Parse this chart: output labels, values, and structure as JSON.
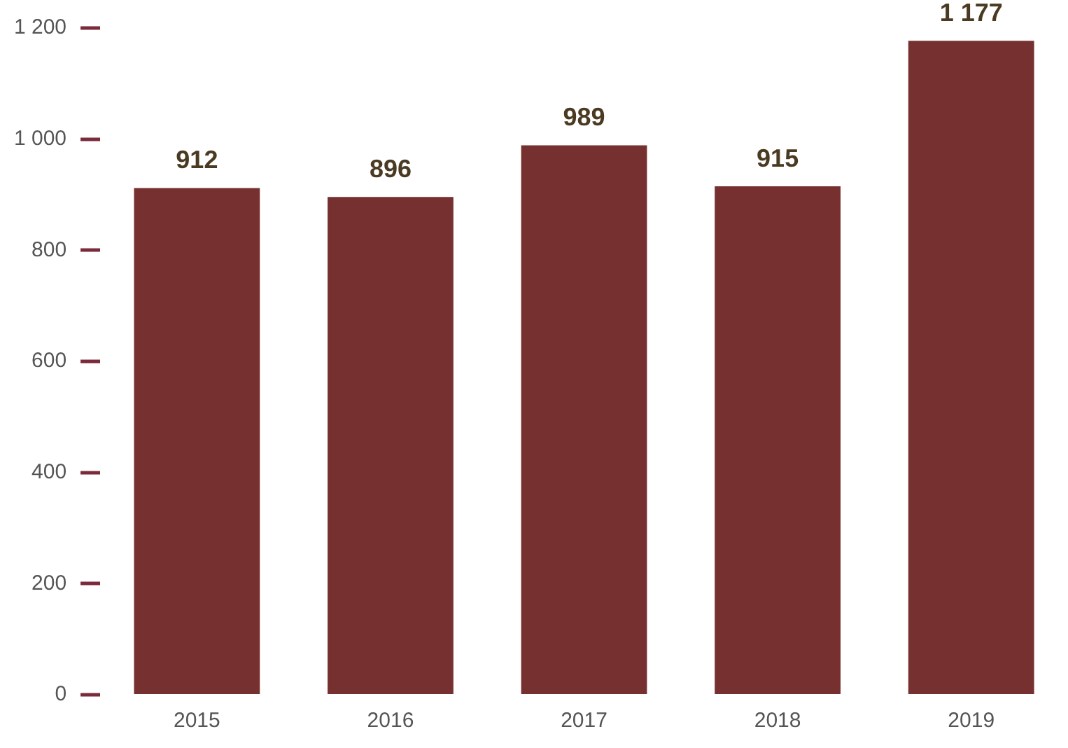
{
  "chart_data": {
    "type": "bar",
    "categories": [
      "2015",
      "2016",
      "2017",
      "2018",
      "2019"
    ],
    "values": [
      912,
      896,
      989,
      915,
      1177
    ],
    "color": "#76302f",
    "value_labels": [
      "912",
      "896",
      "989",
      "915",
      "1 177"
    ],
    "ylim": [
      0,
      1200
    ],
    "yticks": [
      0,
      200,
      400,
      600,
      800,
      {
        "value": 1000,
        "label": "1 000"
      },
      {
        "value": 1200,
        "label": "1 200"
      }
    ],
    "grid": false,
    "legend": false
  }
}
